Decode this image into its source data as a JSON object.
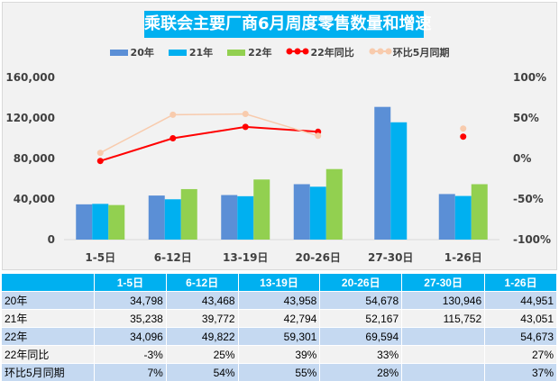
{
  "chart_data": {
    "type": "bar",
    "title": "乘联会主要厂商6月周度零售数量和增速",
    "categories": [
      "1-5日",
      "6-12日",
      "13-19日",
      "20-26日",
      "27-30日",
      "1-26日"
    ],
    "series": [
      {
        "name": "20年",
        "kind": "bar",
        "axis": "left",
        "color": "#5b8fd6",
        "values": [
          34798,
          43468,
          43958,
          54678,
          130946,
          44951
        ]
      },
      {
        "name": "21年",
        "kind": "bar",
        "axis": "left",
        "color": "#00b0f0",
        "values": [
          35238,
          39772,
          42794,
          52167,
          115752,
          43051
        ]
      },
      {
        "name": "22年",
        "kind": "bar",
        "axis": "left",
        "color": "#92d050",
        "values": [
          34096,
          49822,
          59301,
          69594,
          null,
          54673
        ]
      },
      {
        "name": "22年同比",
        "kind": "line",
        "axis": "right",
        "color": "#ff0000",
        "values": [
          -3,
          25,
          39,
          33,
          null,
          27
        ]
      },
      {
        "name": "环比5月同期",
        "kind": "line",
        "axis": "right",
        "color": "#f8cbad",
        "values": [
          7,
          54,
          55,
          28,
          null,
          37
        ]
      }
    ],
    "y_left": {
      "ylim": [
        0,
        160000
      ],
      "ticks": [
        "0",
        "40,000",
        "80,000",
        "120,000",
        "160,000"
      ]
    },
    "y_right": {
      "ylim": [
        -100,
        100
      ],
      "ticks": [
        "-100%",
        "-50%",
        "0%",
        "50%",
        "100%"
      ]
    },
    "grid": false,
    "legend": "top"
  },
  "table": {
    "headers": [
      "",
      "1-5日",
      "6-12日",
      "13-19日",
      "20-26日",
      "27-30日",
      "1-26日"
    ],
    "rows": [
      [
        "20年",
        "34,798",
        "43,468",
        "43,958",
        "54,678",
        "130,946",
        "44,951"
      ],
      [
        "21年",
        "35,238",
        "39,772",
        "42,794",
        "52,167",
        "115,752",
        "43,051"
      ],
      [
        "22年",
        "34,096",
        "49,822",
        "59,301",
        "69,594",
        "",
        "54,673"
      ],
      [
        "22年同比",
        "-3%",
        "25%",
        "39%",
        "33%",
        "",
        "27%"
      ],
      [
        "环比5月同期",
        "7%",
        "54%",
        "55%",
        "28%",
        "",
        "37%"
      ]
    ]
  }
}
